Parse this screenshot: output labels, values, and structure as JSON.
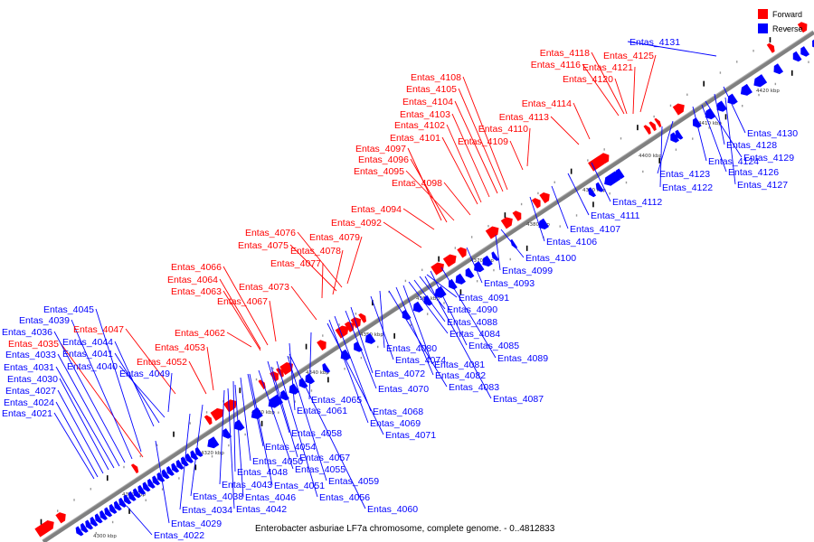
{
  "caption": "Enterobacter asburiae LF7a chromosome, complete genome. - 0..4812833",
  "legend": [
    {
      "label": "Forward",
      "color": "#ff0000"
    },
    {
      "label": "Reverse",
      "color": "#0000ff"
    }
  ],
  "colors": {
    "forward": "#ff0000",
    "reverse": "#0000ff",
    "backbone": "#808080"
  },
  "axis_ticks": [
    "4300 kbp",
    "4310 kbp",
    "4320 kbp",
    "4330 kbp",
    "4340 kbp",
    "4350 kbp",
    "4360 kbp",
    "4370 kbp",
    "4380 kbp",
    "4390 kbp",
    "4400 kbp",
    "4410 kbp",
    "4420 kbp"
  ],
  "forward_labels": [
    "Entas_4118",
    "Entas_4116",
    "Entas_4125",
    "Entas_4121",
    "Entas_4120",
    "Entas_4108",
    "Entas_4105",
    "Entas_4104",
    "Entas_4114",
    "Entas_4103",
    "Entas_4113",
    "Entas_4102",
    "Entas_4110",
    "Entas_4101",
    "Entas_4109",
    "Entas_4097",
    "Entas_4096",
    "Entas_4095",
    "Entas_4098",
    "Entas_4094",
    "Entas_4092",
    "Entas_4076",
    "Entas_4079",
    "Entas_4075",
    "Entas_4078",
    "Entas_4077",
    "Entas_4066",
    "Entas_4064",
    "Entas_4073",
    "Entas_4063",
    "Entas_4067",
    "Entas_4047",
    "Entas_4062",
    "Entas_4035",
    "Entas_4053",
    "Entas_4052"
  ],
  "reverse_labels_left": [
    "Entas_4045",
    "Entas_4039",
    "Entas_4036",
    "Entas_4044",
    "Entas_4033",
    "Entas_4041",
    "Entas_4031",
    "Entas_4040",
    "Entas_4030",
    "Entas_4049",
    "Entas_4027",
    "Entas_4024",
    "Entas_4021"
  ],
  "reverse_labels_right": [
    "Entas_4131",
    "Entas_4130",
    "Entas_4128",
    "Entas_4129",
    "Entas_4124",
    "Entas_4126",
    "Entas_4123",
    "Entas_4122",
    "Entas_4127",
    "Entas_4112",
    "Entas_4111",
    "Entas_4107",
    "Entas_4106",
    "Entas_4100",
    "Entas_4099",
    "Entas_4093",
    "Entas_4091",
    "Entas_4090",
    "Entas_4088",
    "Entas_4084",
    "Entas_4080",
    "Entas_4085",
    "Entas_4074",
    "Entas_4081",
    "Entas_4089",
    "Entas_4072",
    "Entas_4082",
    "Entas_4070",
    "Entas_4083",
    "Entas_4065",
    "Entas_4087",
    "Entas_4061",
    "Entas_4068",
    "Entas_4069",
    "Entas_4071",
    "Entas_4058",
    "Entas_4054",
    "Entas_4057",
    "Entas_4050",
    "Entas_4055",
    "Entas_4048",
    "Entas_4059",
    "Entas_4043",
    "Entas_4051",
    "Entas_4038",
    "Entas_4046",
    "Entas_4056",
    "Entas_4034",
    "Entas_4042",
    "Entas_4060",
    "Entas_4029",
    "Entas_4022"
  ]
}
